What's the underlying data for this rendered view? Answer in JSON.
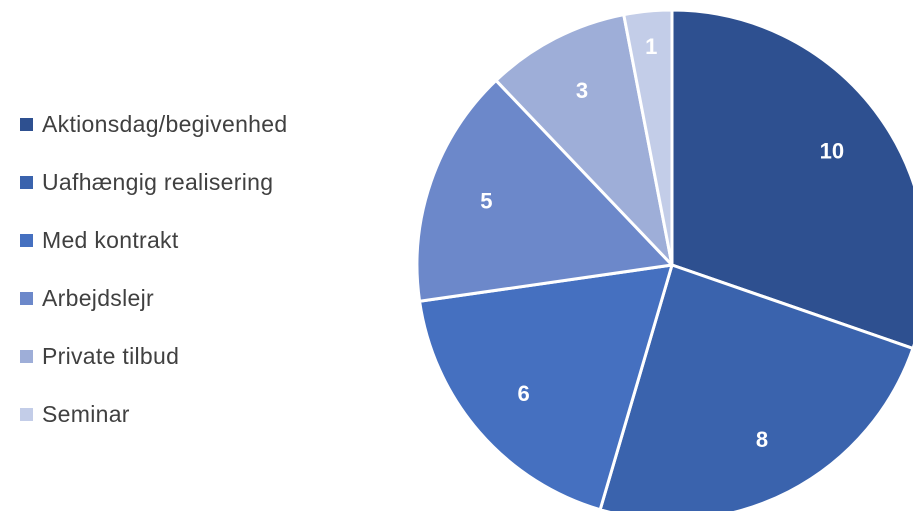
{
  "chart_data": {
    "type": "pie",
    "categories": [
      "Aktionsdag/begivenhed",
      "Uafhængig realisering",
      "Med kontrakt",
      "Arbejdslejr",
      "Private tilbud",
      "Seminar"
    ],
    "values": [
      10,
      8,
      6,
      5,
      3,
      1
    ],
    "colors": [
      "#2e5090",
      "#3a63ad",
      "#4570c0",
      "#6c88ca",
      "#9eaed8",
      "#c3cde8"
    ],
    "title": "",
    "legend": "left",
    "data_labels": true
  }
}
